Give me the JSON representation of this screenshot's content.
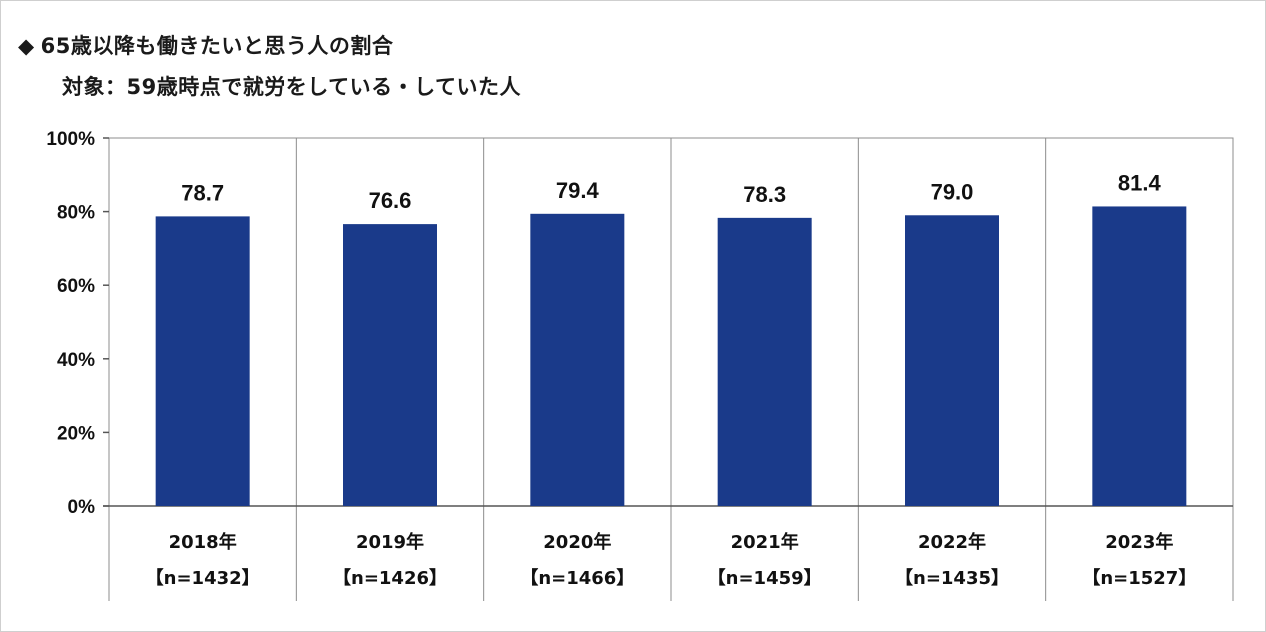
{
  "title_marker": "◆",
  "title": "65歳以降も働きたいと思う人の割合",
  "subtitle": "対象：59歳時点で就労をしている・していた人",
  "chart_data": {
    "type": "bar",
    "title": "65歳以降も働きたいと思う人の割合",
    "subtitle": "対象：59歳時点で就労をしている・していた人",
    "categories": [
      "2018年",
      "2019年",
      "2020年",
      "2021年",
      "2022年",
      "2023年"
    ],
    "sample_sizes": [
      "【n=1432】",
      "【n=1426】",
      "【n=1466】",
      "【n=1459】",
      "【n=1435】",
      "【n=1527】"
    ],
    "values": [
      78.7,
      76.6,
      79.4,
      78.3,
      79.0,
      81.4
    ],
    "value_labels": [
      "78.7",
      "76.6",
      "79.4",
      "78.3",
      "79.0",
      "81.4"
    ],
    "yticks": [
      "0%",
      "20%",
      "40%",
      "60%",
      "80%",
      "100%"
    ],
    "ylim": [
      0,
      100
    ],
    "xlabel": "",
    "ylabel": "",
    "grid": false,
    "bar_color": "#1a3a8a"
  }
}
